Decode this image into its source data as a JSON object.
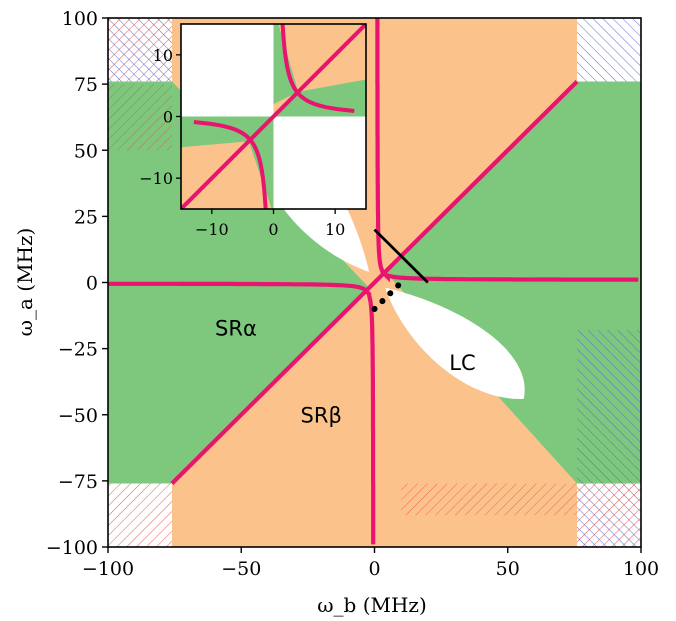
{
  "colors": {
    "sr_alpha": "#7ec87e",
    "sr_beta": "#fcc28c",
    "lc": "#ffffff",
    "boundary": "#e8146e",
    "hatch_red": "#e8453c",
    "hatch_blue": "#4a5bd8",
    "marker": "#000000"
  },
  "chart_data": {
    "type": "area",
    "xlabel": "ω_b (MHz)",
    "ylabel": "ω_a (MHz)",
    "xlim": [
      -100,
      100
    ],
    "ylim": [
      -100,
      100
    ],
    "xticks": [
      -100,
      -50,
      0,
      50,
      100
    ],
    "yticks": [
      -100,
      -75,
      -50,
      -25,
      0,
      25,
      50,
      75,
      100
    ],
    "xtick_labels": [
      "−100",
      "−50",
      "0",
      "50",
      "100"
    ],
    "ytick_labels": [
      "−100",
      "−75",
      "−50",
      "−25",
      "0",
      "25",
      "50",
      "75",
      "100"
    ],
    "annotations": [
      {
        "text": "SRα",
        "x": -52,
        "y": -20
      },
      {
        "text": "SRβ",
        "x": -20,
        "y": -53
      },
      {
        "text": "LC",
        "x": 33,
        "y": -33
      }
    ],
    "markers": {
      "solid_line": [
        [
          0,
          20
        ],
        [
          20,
          0
        ]
      ],
      "dotted_line": [
        [
          0,
          -10
        ],
        [
          10,
          0
        ]
      ]
    },
    "inset": {
      "xlim": [
        -15,
        15
      ],
      "ylim": [
        -15,
        15
      ],
      "xticks": [
        -10,
        0,
        10
      ],
      "yticks": [
        -10,
        0,
        10
      ],
      "xtick_labels": [
        "−10",
        "0",
        "10"
      ],
      "ytick_labels": [
        "−10",
        "0",
        "10"
      ]
    }
  }
}
